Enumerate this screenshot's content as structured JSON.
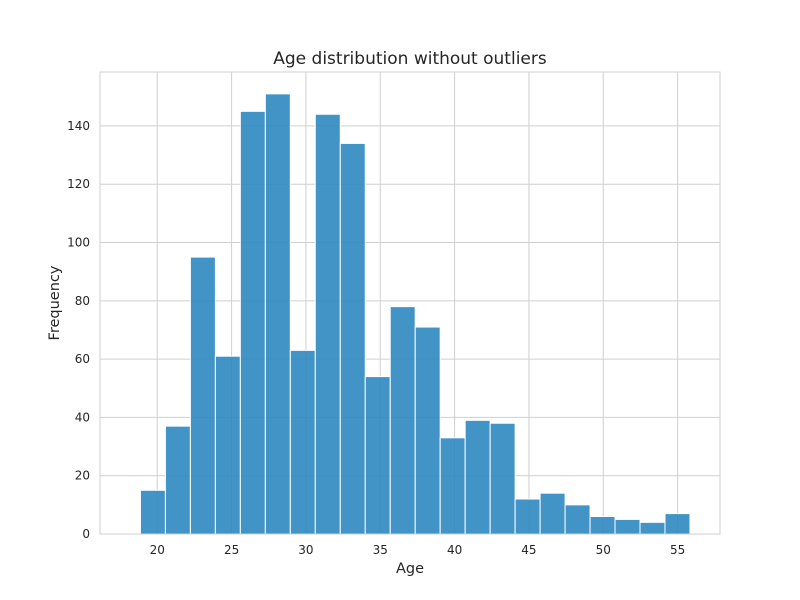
{
  "chart_data": {
    "type": "bar",
    "subtype": "histogram",
    "title": "Age distribution without outliers",
    "xlabel": "Age",
    "ylabel": "Frequency",
    "xlim": [
      16.15,
      57.85
    ],
    "ylim": [
      0,
      158.5
    ],
    "xticks": [
      20,
      25,
      30,
      35,
      40,
      45,
      50,
      55
    ],
    "yticks": [
      0,
      20,
      40,
      60,
      80,
      100,
      120,
      140
    ],
    "bin_width": 1.68,
    "bin_edges": [
      18.87,
      20.55,
      22.23,
      23.91,
      25.59,
      27.27,
      28.95,
      30.63,
      32.31,
      33.99,
      35.67,
      37.35,
      39.03,
      40.71,
      42.39,
      44.07,
      45.75,
      47.43,
      49.11,
      50.79,
      52.47,
      54.15,
      55.83
    ],
    "values": [
      15,
      37,
      95,
      61,
      145,
      151,
      63,
      144,
      134,
      54,
      78,
      71,
      33,
      39,
      38,
      12,
      14,
      10,
      6,
      5,
      4,
      7
    ],
    "grid": true,
    "colors": {
      "bar": "#2e88c0",
      "bar_edge": "#ffffff",
      "grid": "#cfcfcf",
      "frame": "#cfcfcf",
      "text": "#262626"
    }
  }
}
